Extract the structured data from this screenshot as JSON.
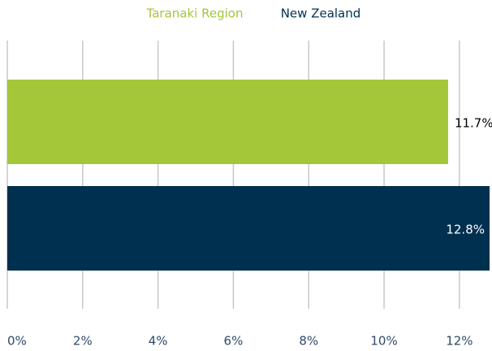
{
  "chart_data": {
    "type": "bar",
    "orientation": "horizontal",
    "categories": [
      null
    ],
    "series": [
      {
        "name": "Taranaki Region",
        "color": "#a4c639",
        "values": [
          11.7
        ],
        "value_labels": [
          "11.7%"
        ]
      },
      {
        "name": "New Zealand",
        "color": "#00304f",
        "values": [
          12.8
        ],
        "value_labels": [
          "12.8%"
        ]
      }
    ],
    "xlim": [
      0,
      12.8
    ],
    "xticks": [
      {
        "value": 0,
        "label": "0%"
      },
      {
        "value": 2,
        "label": "2%"
      },
      {
        "value": 4,
        "label": "4%"
      },
      {
        "value": 6,
        "label": "6%"
      },
      {
        "value": 8,
        "label": "8%"
      },
      {
        "value": 10,
        "label": "10%"
      },
      {
        "value": 12,
        "label": "12%"
      }
    ],
    "grid": true,
    "legend": "top"
  }
}
